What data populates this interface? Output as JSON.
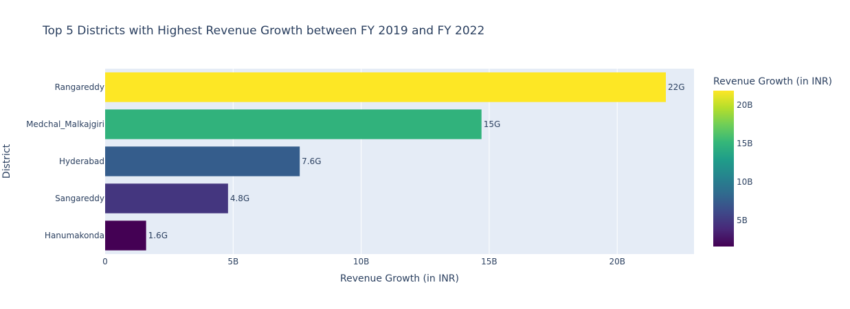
{
  "chart_data": {
    "type": "bar",
    "orientation": "horizontal",
    "title": "Top 5 Districts with Highest Revenue Growth between FY 2019 and FY 2022",
    "xlabel": "Revenue Growth (in INR)",
    "ylabel": "District",
    "categories": [
      "Rangareddy",
      "Medchal_Malkajgiri",
      "Hyderabad",
      "Sangareddy",
      "Hanumakonda"
    ],
    "values": [
      21900000000,
      14700000000,
      7600000000,
      4800000000,
      1600000000
    ],
    "data_labels": [
      "22G",
      "15G",
      "7.6G",
      "4.8G",
      "1.6G"
    ],
    "xlim": [
      0,
      23000000000
    ],
    "x_ticks": [
      0,
      5000000000,
      10000000000,
      15000000000,
      20000000000
    ],
    "x_tick_labels": [
      "0",
      "5B",
      "10B",
      "15B",
      "20B"
    ],
    "grid": true,
    "colorbar": {
      "title": "Revenue Growth (in INR)",
      "colorscale": "Viridis",
      "range": [
        1600000000,
        21900000000
      ],
      "ticks": [
        5000000000,
        10000000000,
        15000000000,
        20000000000
      ],
      "tick_labels": [
        "5B",
        "10B",
        "15B",
        "20B"
      ],
      "placement": "right"
    },
    "colors": {
      "plot_background": "#e5ecf6",
      "gridline": "#ffffff",
      "text": "#2a3f5f"
    }
  }
}
